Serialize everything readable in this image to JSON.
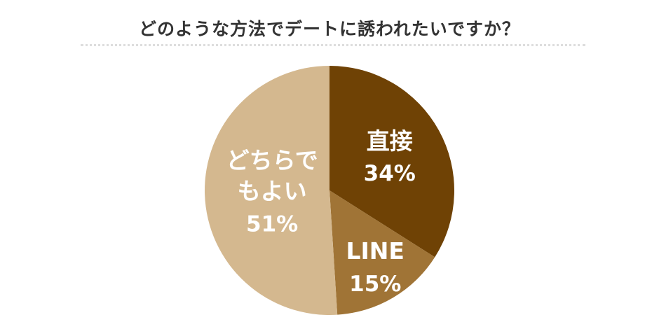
{
  "chart_data": {
    "type": "pie",
    "title": "どのような方法でデートに誘われたいですか？",
    "categories": [
      "直接",
      "LINE",
      "どちらでもよい"
    ],
    "values": [
      34,
      15,
      51
    ],
    "value_labels": [
      "34%",
      "15%",
      "51%"
    ],
    "colors": [
      "#6f4205",
      "#a07436",
      "#d4b88f"
    ]
  }
}
